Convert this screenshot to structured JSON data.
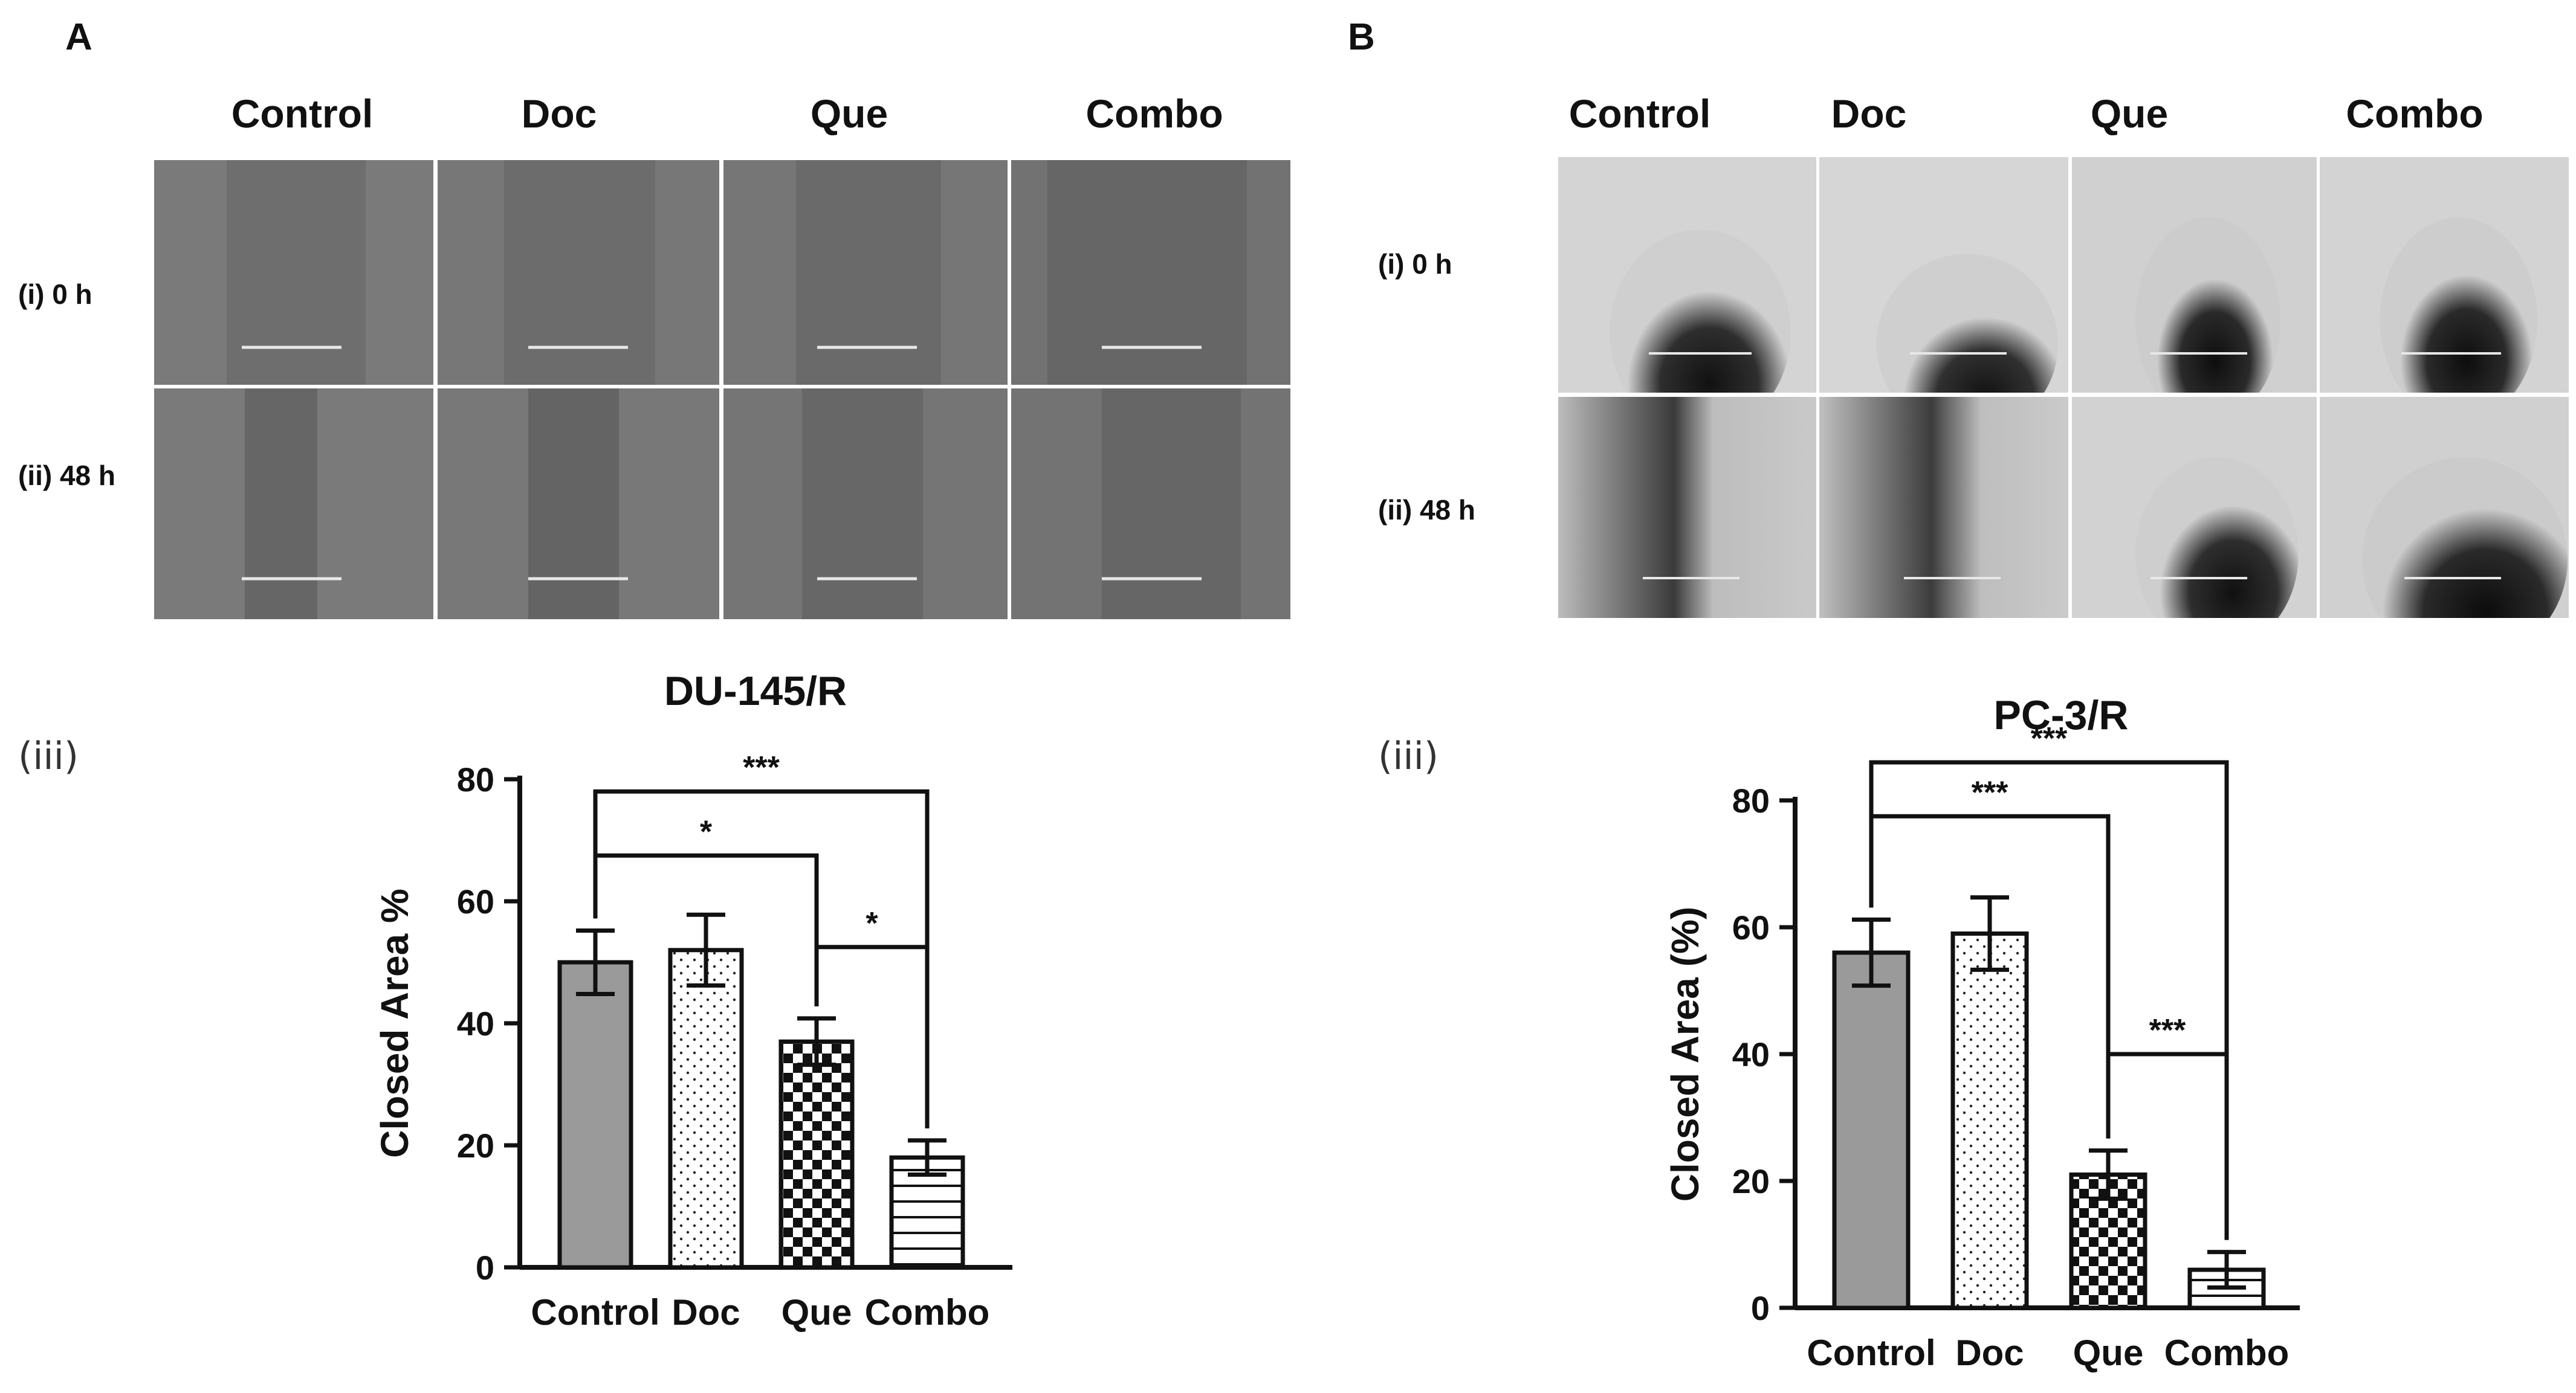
{
  "panel_a": {
    "letter": "A",
    "columns": [
      "Control",
      "Doc",
      "Que",
      "Combo"
    ],
    "rows": [
      "(i) 0 h",
      "(ii) 48 h"
    ],
    "sub_label": "(iii)",
    "chart_title": "DU-145/R"
  },
  "panel_b": {
    "letter": "B",
    "columns": [
      "Control",
      "Doc",
      "Que",
      "Combo"
    ],
    "rows": [
      "(i) 0 h",
      "(ii) 48  h"
    ],
    "sub_label": "(iii)",
    "chart_title": "PC-3/R"
  },
  "chart_data": [
    {
      "type": "bar",
      "title": "DU-145/R",
      "xlabel": "",
      "ylabel": "Closed  Area %",
      "categories": [
        "Control",
        "Doc",
        "Que",
        "Combo"
      ],
      "values": [
        50,
        52,
        37,
        18
      ],
      "errors": [
        5.2,
        5.8,
        3.8,
        2.8
      ],
      "ylim": [
        0,
        80
      ],
      "yticks": [
        0,
        20,
        40,
        60,
        80
      ],
      "patterns": [
        "solid-gray",
        "dots",
        "checker",
        "horizontal-lines"
      ],
      "significance": [
        {
          "from": 0,
          "to": 3,
          "label": "***",
          "level": 78
        },
        {
          "from": 0,
          "to": 2,
          "label": "*",
          "level": 67.5
        },
        {
          "from": 2,
          "to": 3,
          "label": "*",
          "level": 52.5
        }
      ]
    },
    {
      "type": "bar",
      "title": "PC-3/R",
      "xlabel": "",
      "ylabel": "Closed Area (%)",
      "categories": [
        "Control",
        "Doc",
        "Que",
        "Combo"
      ],
      "values": [
        56,
        59,
        21,
        6
      ],
      "errors": [
        5.2,
        5.7,
        3.8,
        2.8
      ],
      "ylim": [
        0,
        80
      ],
      "yticks": [
        0,
        20,
        40,
        60,
        80
      ],
      "patterns": [
        "solid-gray",
        "dots",
        "checker",
        "horizontal-lines"
      ],
      "significance": [
        {
          "from": 0,
          "to": 3,
          "label": "***",
          "level": 86
        },
        {
          "from": 0,
          "to": 2,
          "label": "***",
          "level": 77.5
        },
        {
          "from": 2,
          "to": 3,
          "label": "***",
          "level": 40
        }
      ]
    }
  ]
}
